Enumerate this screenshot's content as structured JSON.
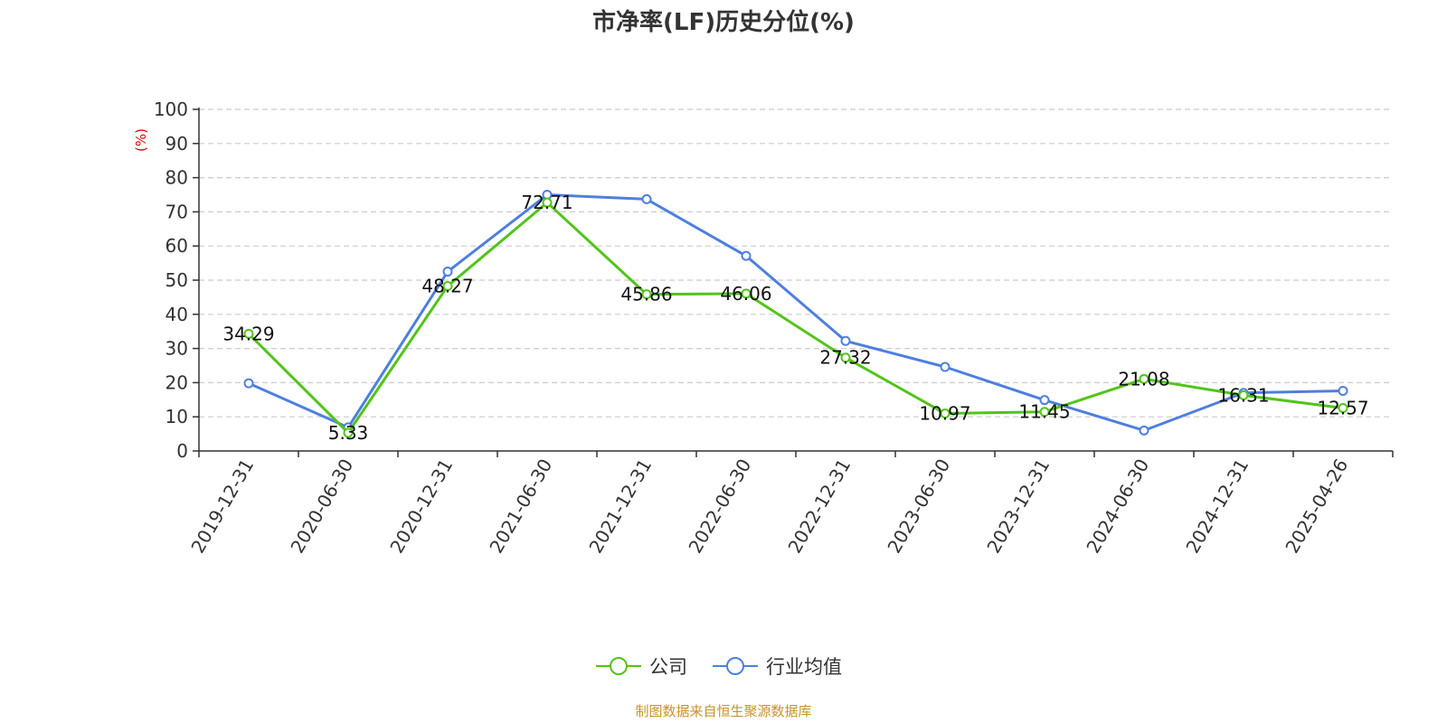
{
  "colors": {
    "company": "#52c41a",
    "industry": "#4e7fdf",
    "grid": "#cccccc",
    "axis": "#333333",
    "unit": "#e00000",
    "source": "#c8922a"
  },
  "chart_data": {
    "type": "line",
    "title": "市净率(LF)历史分位(%)",
    "ylabel": "(%)",
    "xlabel": "",
    "ylim": [
      0,
      100
    ],
    "yticks": [
      0,
      10,
      20,
      30,
      40,
      50,
      60,
      70,
      80,
      90,
      100
    ],
    "grid": true,
    "legend_position": "bottom-center",
    "categories": [
      "2019-12-31",
      "2020-06-30",
      "2020-12-31",
      "2021-06-30",
      "2021-12-31",
      "2022-06-30",
      "2022-12-31",
      "2023-06-30",
      "2023-12-31",
      "2024-06-30",
      "2024-12-31",
      "2025-04-26"
    ],
    "series": [
      {
        "name": "公司",
        "color": "#52c41a",
        "values": [
          34.29,
          5.33,
          48.27,
          72.71,
          45.86,
          46.06,
          27.32,
          10.97,
          11.45,
          21.08,
          16.31,
          12.57
        ],
        "labels": [
          "34.29",
          "5.33",
          "48.27",
          "72.71",
          "45.86",
          "46.06",
          "27.32",
          "10.97",
          "11.45",
          "21.08",
          "16.31",
          "12.57"
        ]
      },
      {
        "name": "行业均值",
        "color": "#4e7fdf",
        "values": [
          19.8,
          6.9,
          52.5,
          75.0,
          73.7,
          57.1,
          32.2,
          24.6,
          14.9,
          6.0,
          17.0,
          17.6
        ]
      }
    ]
  },
  "footer": {
    "source": "制图数据来自恒生聚源数据库"
  }
}
